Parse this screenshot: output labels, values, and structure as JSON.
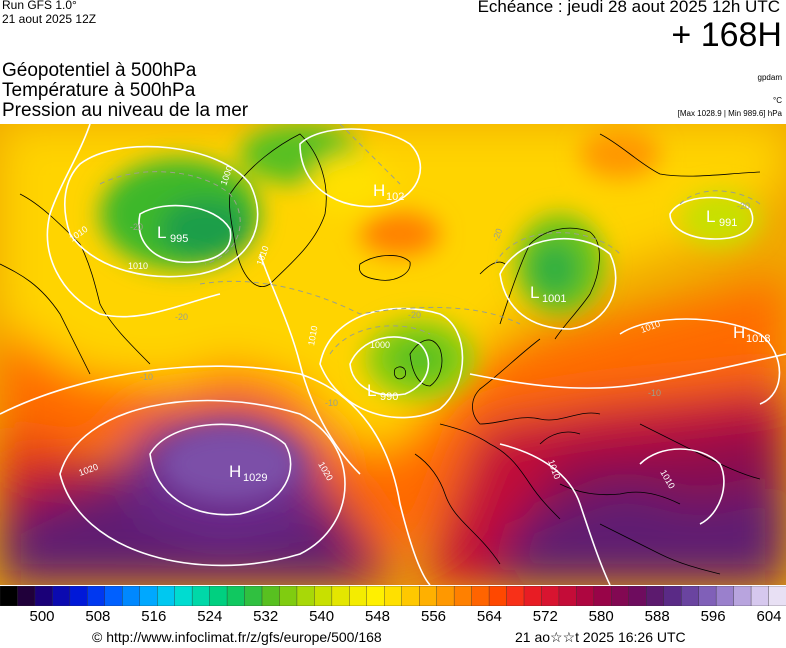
{
  "header": {
    "run": "Run GFS 1.0°",
    "run_date": "21 aout 2025 12Z",
    "echeance": "Echéance : jeudi 28 aout 2025 12h UTC",
    "lead": "+ 168H"
  },
  "params": {
    "line1": "Géopotentiel à 500hPa",
    "line2": "Température à 500hPa",
    "line3": "Pression au niveau de la mer"
  },
  "units": {
    "geopotential": "gpdam",
    "temperature": "°C",
    "pressure": "[Max 1028.9 | Min 989.6] hPa"
  },
  "pressure_centers": [
    {
      "type": "L",
      "value": "995"
    },
    {
      "type": "H",
      "value": "102"
    },
    {
      "type": "L",
      "value": "991"
    },
    {
      "type": "L",
      "value": "1001"
    },
    {
      "type": "H",
      "value": "1018"
    },
    {
      "type": "L",
      "value": "990"
    },
    {
      "type": "H",
      "value": "1029"
    }
  ],
  "isobar_labels": [
    "1000",
    "1010",
    "1010",
    "1000",
    "1020",
    "1020",
    "1010",
    "1010",
    "1010",
    "1010",
    "1010"
  ],
  "temperature_labels": [
    "-20",
    "-20",
    "-20",
    "-20",
    "-20",
    "-10",
    "-10",
    "-10"
  ],
  "scale": {
    "labels": [
      "500",
      "508",
      "516",
      "524",
      "532",
      "540",
      "548",
      "556",
      "564",
      "572",
      "580",
      "588",
      "596",
      "604"
    ],
    "colors": [
      "#000000",
      "#20003a",
      "#1a0078",
      "#0b0ab0",
      "#0018d8",
      "#0038f0",
      "#0060ff",
      "#0088ff",
      "#00a8ff",
      "#00c8f0",
      "#00dcd0",
      "#00d8a8",
      "#00d080",
      "#10c860",
      "#30c040",
      "#58c020",
      "#80cc10",
      "#a8d808",
      "#c8e000",
      "#e4e600",
      "#f4ec00",
      "#fff000",
      "#ffe000",
      "#ffc800",
      "#ffb000",
      "#ff9800",
      "#ff8000",
      "#ff6400",
      "#ff4800",
      "#f83018",
      "#e81c24",
      "#d81430",
      "#c40c38",
      "#ae0640",
      "#980448",
      "#820852",
      "#6e0c5e",
      "#5c1a6e",
      "#5a2a86",
      "#6a44a0",
      "#8060b8",
      "#9a80cc",
      "#b8a4de",
      "#d6c8ee",
      "#e8e0f4"
    ]
  },
  "footer": {
    "credit": "© http://www.infoclimat.fr/z/gfs/europe/500/168",
    "generated": "21 ao☆☆t 2025 16:26 UTC"
  }
}
